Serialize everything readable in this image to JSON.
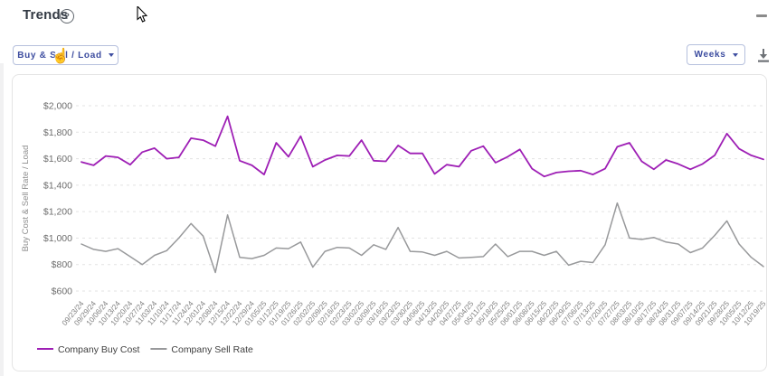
{
  "header": {
    "title": "Trends",
    "help_glyph": "?"
  },
  "toolbar": {
    "metric_dropdown": {
      "label": "Buy & Sell / Load"
    },
    "interval_dropdown": {
      "label": "Weeks"
    }
  },
  "colors": {
    "buy_line": "#9e1fb5",
    "sell_line": "#98999b",
    "accent_button": "#3d4da0",
    "grid": "#e3e3e3"
  },
  "chart_data": {
    "type": "line",
    "title": "",
    "xlabel": "",
    "ylabel": "Buy Cost & Sell Rate / Load",
    "ylim": [
      600,
      2000
    ],
    "ytick_step": 200,
    "grid": "horizontal-dashed",
    "legend_position": "bottom-left",
    "categories": [
      "09/23/24",
      "09/29/24",
      "10/06/24",
      "10/13/24",
      "10/20/24",
      "10/27/24",
      "11/03/24",
      "11/10/24",
      "11/17/24",
      "11/24/24",
      "12/01/24",
      "12/08/24",
      "12/15/24",
      "12/22/24",
      "12/29/24",
      "01/05/25",
      "01/12/25",
      "01/19/25",
      "01/26/25",
      "02/02/25",
      "02/09/25",
      "02/16/25",
      "02/23/25",
      "03/02/25",
      "03/09/25",
      "03/16/25",
      "03/23/25",
      "03/30/25",
      "04/06/25",
      "04/13/25",
      "04/20/25",
      "04/27/25",
      "05/04/25",
      "05/11/25",
      "05/18/25",
      "05/25/25",
      "06/01/25",
      "06/08/25",
      "06/15/25",
      "06/22/25",
      "06/29/25",
      "07/06/25",
      "07/13/25",
      "07/20/25",
      "07/27/25",
      "08/03/25",
      "08/10/25",
      "08/17/25",
      "08/24/25",
      "08/31/25",
      "09/07/25",
      "09/14/25",
      "09/21/25",
      "09/28/25",
      "10/05/25",
      "10/12/25",
      "10/19/25"
    ],
    "series": [
      {
        "name": "Company Buy Cost",
        "color": "#9e1fb5",
        "values": [
          1575,
          1550,
          1620,
          1610,
          1555,
          1650,
          1680,
          1600,
          1610,
          1755,
          1740,
          1695,
          1920,
          1585,
          1550,
          1480,
          1720,
          1615,
          1770,
          1540,
          1590,
          1625,
          1620,
          1740,
          1585,
          1580,
          1700,
          1640,
          1640,
          1485,
          1555,
          1540,
          1660,
          1695,
          1570,
          1615,
          1670,
          1525,
          1465,
          1495,
          1505,
          1510,
          1480,
          1525,
          1690,
          1720,
          1580,
          1520,
          1590,
          1560,
          1520,
          1560,
          1625,
          1790,
          1675,
          1625,
          1595
        ]
      },
      {
        "name": "Company Sell Rate",
        "color": "#98999b",
        "values": [
          955,
          915,
          900,
          920,
          860,
          800,
          870,
          905,
          1000,
          1110,
          1015,
          740,
          1175,
          855,
          845,
          870,
          925,
          920,
          970,
          780,
          900,
          930,
          925,
          870,
          950,
          915,
          1080,
          900,
          895,
          870,
          900,
          850,
          855,
          860,
          955,
          860,
          900,
          900,
          870,
          900,
          795,
          825,
          815,
          950,
          1265,
          1000,
          990,
          1005,
          970,
          955,
          890,
          925,
          1020,
          1130,
          955,
          855,
          785
        ]
      }
    ]
  }
}
